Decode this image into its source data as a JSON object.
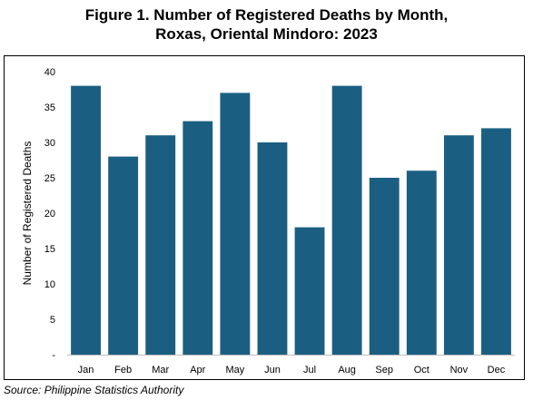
{
  "chart_data": {
    "type": "bar",
    "title_line1": "Figure 1. Number of Registered Deaths by Month,",
    "title_line2": "Roxas, Oriental Mindoro: 2023",
    "xlabel": "",
    "ylabel": "Number of Registered Deaths",
    "categories": [
      "Jan",
      "Feb",
      "Mar",
      "Apr",
      "May",
      "Jun",
      "Jul",
      "Aug",
      "Sep",
      "Oct",
      "Nov",
      "Dec"
    ],
    "values": [
      38,
      28,
      31,
      33,
      37,
      30,
      18,
      38,
      25,
      26,
      31,
      32
    ],
    "ylim": [
      0,
      40
    ],
    "yticks": [
      0,
      5,
      10,
      15,
      20,
      25,
      30,
      35,
      40
    ],
    "ytick_labels": [
      "-",
      "5",
      "10",
      "15",
      "20",
      "25",
      "30",
      "35",
      "40"
    ],
    "grid": false,
    "bar_color": "#1a5f82"
  },
  "source": "Source: Philippine Statistics Authority"
}
